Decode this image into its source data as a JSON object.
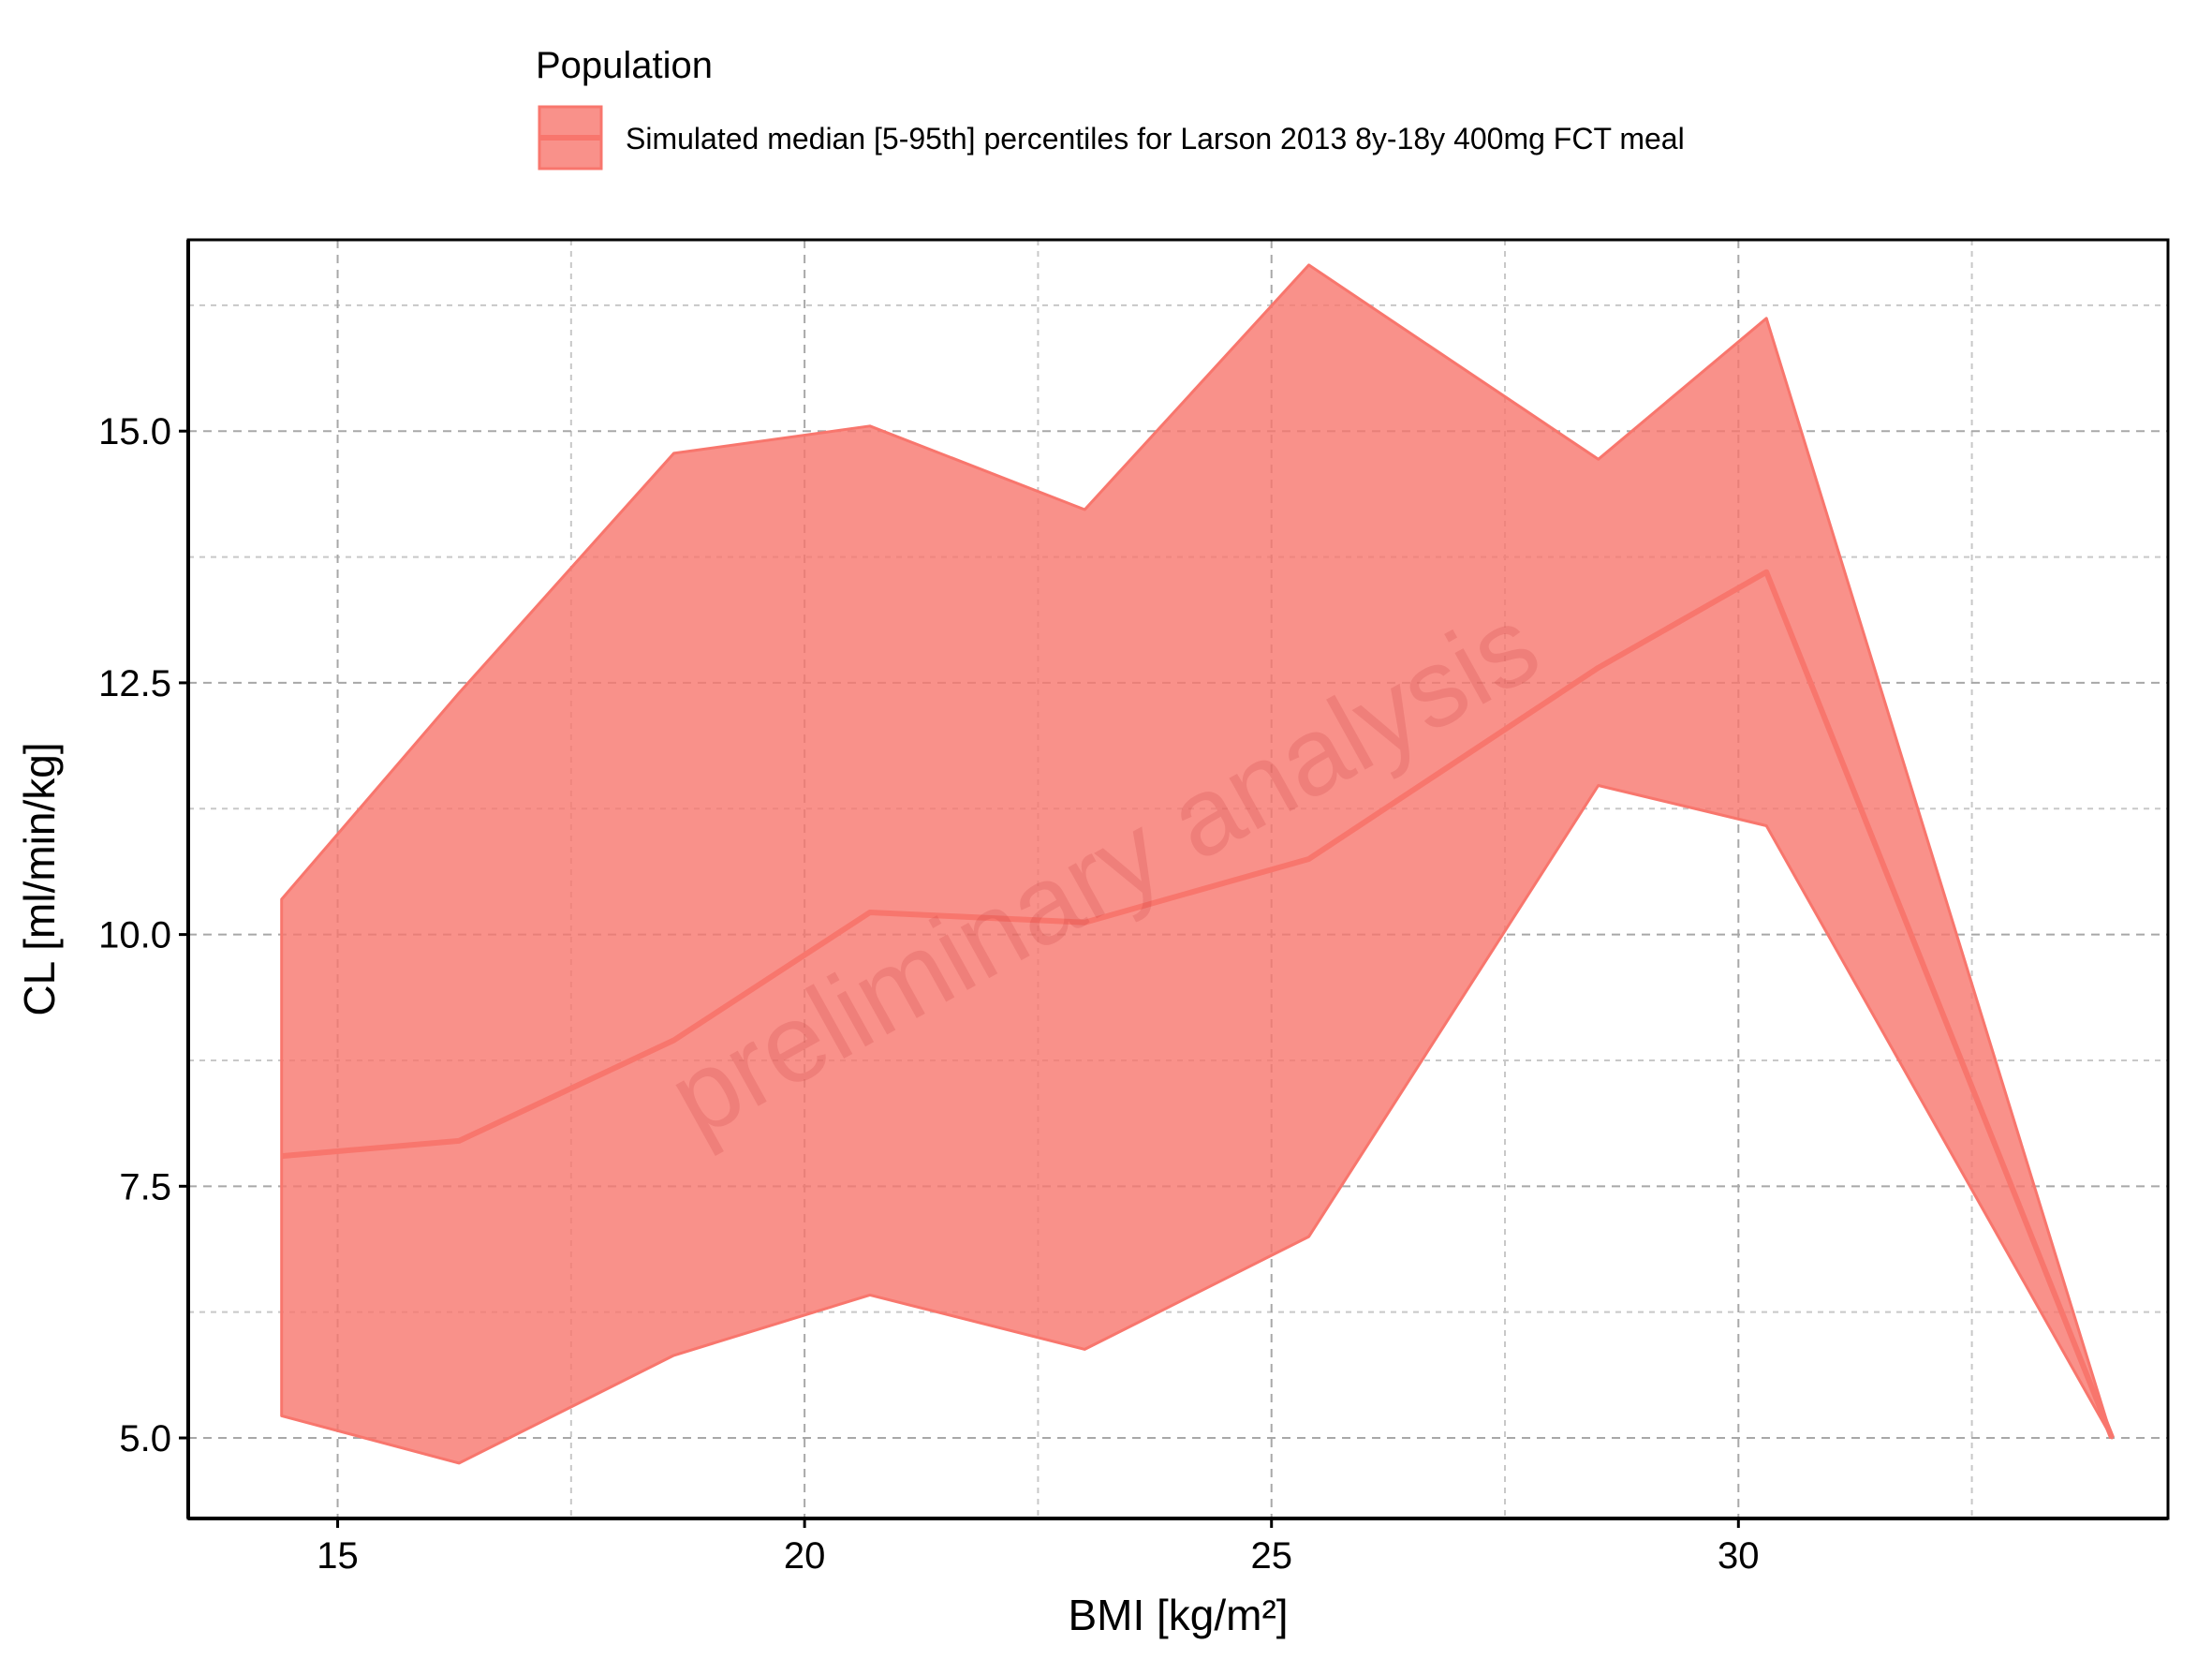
{
  "chart_data": {
    "type": "area",
    "xlabel": "BMI [kg/m²]",
    "ylabel": "CL [ml/min/kg]",
    "xlim": [
      13.4,
      34.6
    ],
    "ylim": [
      4.2,
      16.9
    ],
    "x_ticks": [
      15,
      20,
      25,
      30
    ],
    "x_tick_labels": [
      "15",
      "20",
      "25",
      "30"
    ],
    "y_ticks": [
      5.0,
      7.5,
      10.0,
      12.5,
      15.0
    ],
    "y_tick_labels": [
      "5.0",
      "7.5",
      "10.0",
      "12.5",
      "15.0"
    ],
    "x_minor_ticks": [
      17.5,
      22.5,
      27.5,
      32.5
    ],
    "y_minor_ticks": [
      6.25,
      8.75,
      11.25,
      13.75,
      16.25
    ],
    "grid": true,
    "legend": {
      "title": "Population",
      "placement": "top",
      "entries": [
        "Simulated median [5-95th] percentiles for Larson 2013 8y-18y 400mg FCT meal"
      ]
    },
    "series": [
      {
        "name": "Simulated median [5-95th] percentiles for Larson 2013 8y-18y 400mg FCT meal",
        "x": [
          14.4,
          16.3,
          18.6,
          20.7,
          23.0,
          25.4,
          28.5,
          30.3,
          34.0
        ],
        "median": [
          7.8,
          7.95,
          8.95,
          10.22,
          10.12,
          10.75,
          12.65,
          13.6,
          5.0
        ],
        "p95": [
          10.35,
          12.4,
          14.78,
          15.05,
          14.22,
          16.65,
          14.72,
          16.12,
          5.0
        ],
        "p5": [
          5.22,
          4.75,
          5.82,
          6.42,
          5.88,
          7.0,
          11.48,
          11.08,
          5.0
        ]
      }
    ],
    "colors": {
      "band_fill": "#f8766d",
      "band_outline": "#f8766d",
      "median_line": "#f8766d"
    },
    "annotations": [
      {
        "text": "preliminary analysis",
        "style": "watermark"
      }
    ]
  }
}
